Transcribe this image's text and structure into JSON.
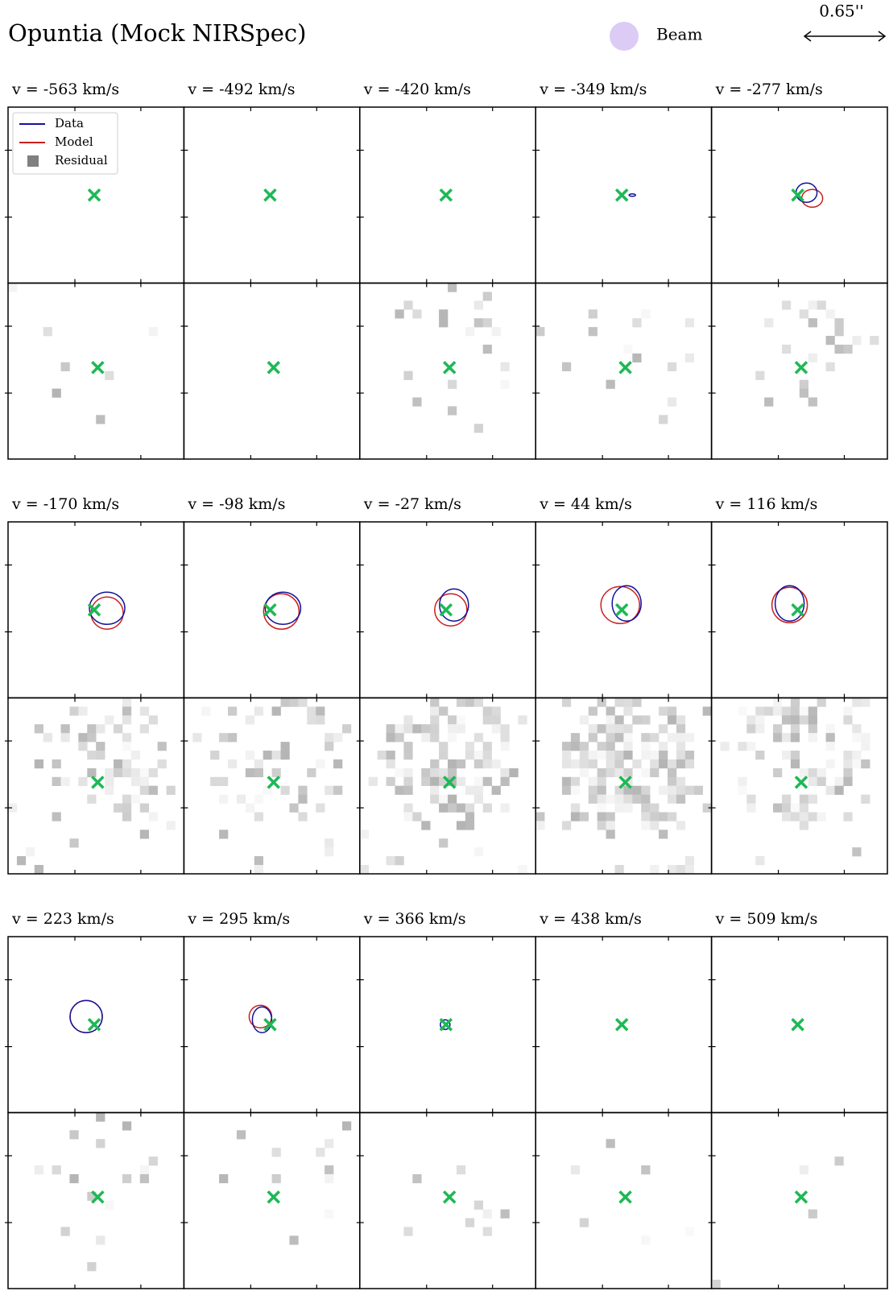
{
  "title": "Opuntia (Mock NIRSpec)",
  "beam_label": "Beam",
  "scale_label": "0.65''",
  "legend": [
    "Data",
    "Model",
    "Residual"
  ],
  "channels": [
    "v = -563 km/s",
    "v = -492 km/s",
    "v = -420 km/s",
    "v = -349 km/s",
    "v = -277 km/s",
    "v = -170 km/s",
    "v = -98 km/s",
    "v = -27 km/s",
    "v = 44 km/s",
    "v = 116 km/s",
    "v = 223 km/s",
    "v = 295 km/s",
    "v = 366 km/s",
    "v = 438 km/s",
    "v = 509 km/s"
  ]
}
